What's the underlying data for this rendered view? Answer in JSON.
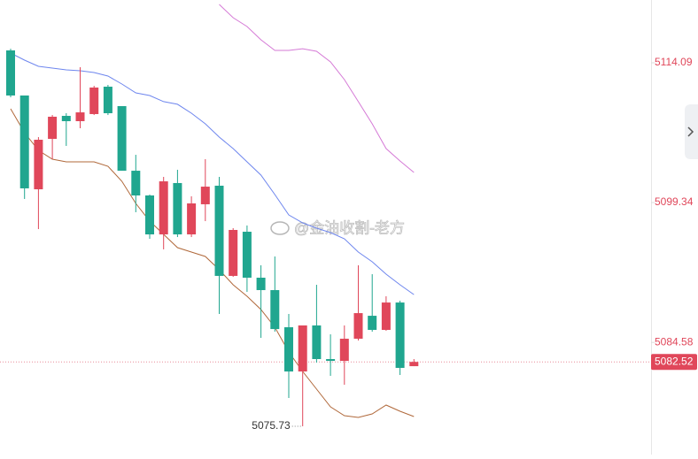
{
  "chart_data": {
    "type": "candlestick",
    "up_color": "#e0475a",
    "down_color": "#20a68f",
    "open": [
      5115.4,
      5110.64,
      5100.74,
      5106.06,
      5108.49,
      5107.93,
      5108.68,
      5111.57,
      5109.52,
      5102.7,
      5100.09,
      5095.98,
      5101.4,
      5095.98,
      5099.16,
      5101.12,
      5091.6,
      5096.26,
      5091.41,
      5090.1,
      5086.18,
      5081.51,
      5086.37,
      5082.82,
      5082.63,
      5084.97,
      5087.39,
      5085.9,
      5088.79,
      5082.07
    ],
    "high": [
      5115.58,
      5110.64,
      5106.25,
      5108.58,
      5108.77,
      5113.63,
      5111.66,
      5111.76,
      5109.52,
      5104.38,
      5100.18,
      5102.05,
      5102.8,
      5100.0,
      5103.92,
      5102.05,
      5096.64,
      5096.92,
      5092.72,
      5093.65,
      5087.58,
      5086.37,
      5090.66,
      5085.43,
      5086.37,
      5092.72,
      5091.78,
      5089.45,
      5088.98,
      5082.82
    ],
    "low": [
      5110.45,
      5099.72,
      5096.54,
      5103.92,
      5105.32,
      5107.18,
      5108.58,
      5108.58,
      5102.7,
      5098.32,
      5095.52,
      5094.4,
      5095.7,
      5095.7,
      5097.38,
      5087.58,
      5091.5,
      5089.91,
      5085.06,
      5085.71,
      5078.71,
      5075.73,
      5082.45,
      5081.05,
      5080.11,
      5084.78,
      5085.71,
      5085.81,
      5081.14,
      5082.07
    ],
    "close": [
      5110.64,
      5100.84,
      5105.97,
      5108.4,
      5107.93,
      5108.86,
      5111.48,
      5108.77,
      5102.7,
      5100.09,
      5095.98,
      5101.58,
      5095.98,
      5099.25,
      5101.02,
      5091.6,
      5096.45,
      5091.41,
      5090.1,
      5085.99,
      5081.51,
      5086.37,
      5082.82,
      5082.63,
      5084.97,
      5087.67,
      5085.9,
      5088.79,
      5081.89,
      5082.52
    ],
    "lines": [
      {
        "color": "#6e86ee",
        "values": [
          5115.12,
          5114.37,
          5113.72,
          5113.53,
          5113.35,
          5113.25,
          5113.07,
          5112.69,
          5111.85,
          5110.92,
          5110.64,
          5109.99,
          5109.71,
          5108.77,
          5107.65,
          5106.25,
          5105.04,
          5103.64,
          5102.24,
          5100.18,
          5098.04,
          5097.2,
          5096.64,
          5096.17,
          5095.52,
          5094.12,
          5093.09,
          5091.78,
          5090.66,
          5089.63
        ]
      },
      {
        "color": "#b0683a",
        "values": [
          5109.24,
          5106.72,
          5104.85,
          5103.92,
          5103.64,
          5103.64,
          5103.64,
          5103.17,
          5101.58,
          5099.25,
          5097.38,
          5095.98,
          5094.58,
          5094.12,
          5093.65,
          5092.25,
          5090.66,
          5089.45,
          5088.05,
          5086.18,
          5083.57,
          5081.51,
          5079.65,
          5077.78,
          5076.85,
          5076.66,
          5077.03,
          5077.97,
          5077.31,
          5076.75
        ]
      },
      {
        "color": "#d57ad6",
        "values": [
          null,
          null,
          null,
          null,
          null,
          null,
          null,
          null,
          null,
          null,
          null,
          null,
          null,
          null,
          null,
          5120.25,
          5118.85,
          5117.92,
          5116.52,
          5115.4,
          5115.4,
          5115.58,
          5115.31,
          5114.19,
          5112.32,
          5109.99,
          5107.65,
          5105.04,
          5103.73,
          5102.52
        ]
      }
    ],
    "ylim": [
      5072.74,
      5120.72
    ],
    "yticks": [
      5084.58,
      5099.34,
      5114.09
    ],
    "last_price": 5082.52,
    "low_annotation": 5075.73,
    "watermark": "@金油收割-老方"
  }
}
